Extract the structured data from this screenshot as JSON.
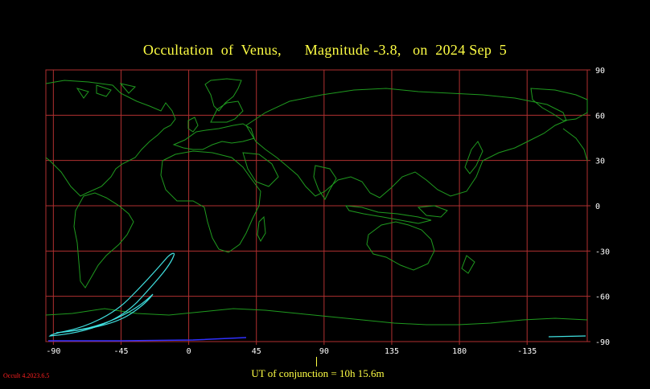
{
  "title": "Occultation  of  Venus,      Magnitude -3.8,   on  2024 Sep  5",
  "x_ticks": [
    "-90",
    "-45",
    "0",
    "45",
    "90",
    "135",
    "180",
    "-135"
  ],
  "y_ticks": [
    "90",
    "60",
    "30",
    "0",
    "-30",
    "-60",
    "-90"
  ],
  "ut_label": "UT of conjunction = 10h 15.6m",
  "version": "Occult 4.2023.6.5",
  "colors": {
    "background": "#000000",
    "grid": "#b03030",
    "coast": "#1f9a1f",
    "path": "#40e0e0",
    "daylight_edge": "#3030ff",
    "text": "#ffff44"
  },
  "map": {
    "projection": "equirectangular",
    "lon_range": [
      -95,
      265
    ],
    "lat_range": [
      -90,
      90
    ],
    "grid_step_deg": 45,
    "lat_step_deg": 30
  }
}
